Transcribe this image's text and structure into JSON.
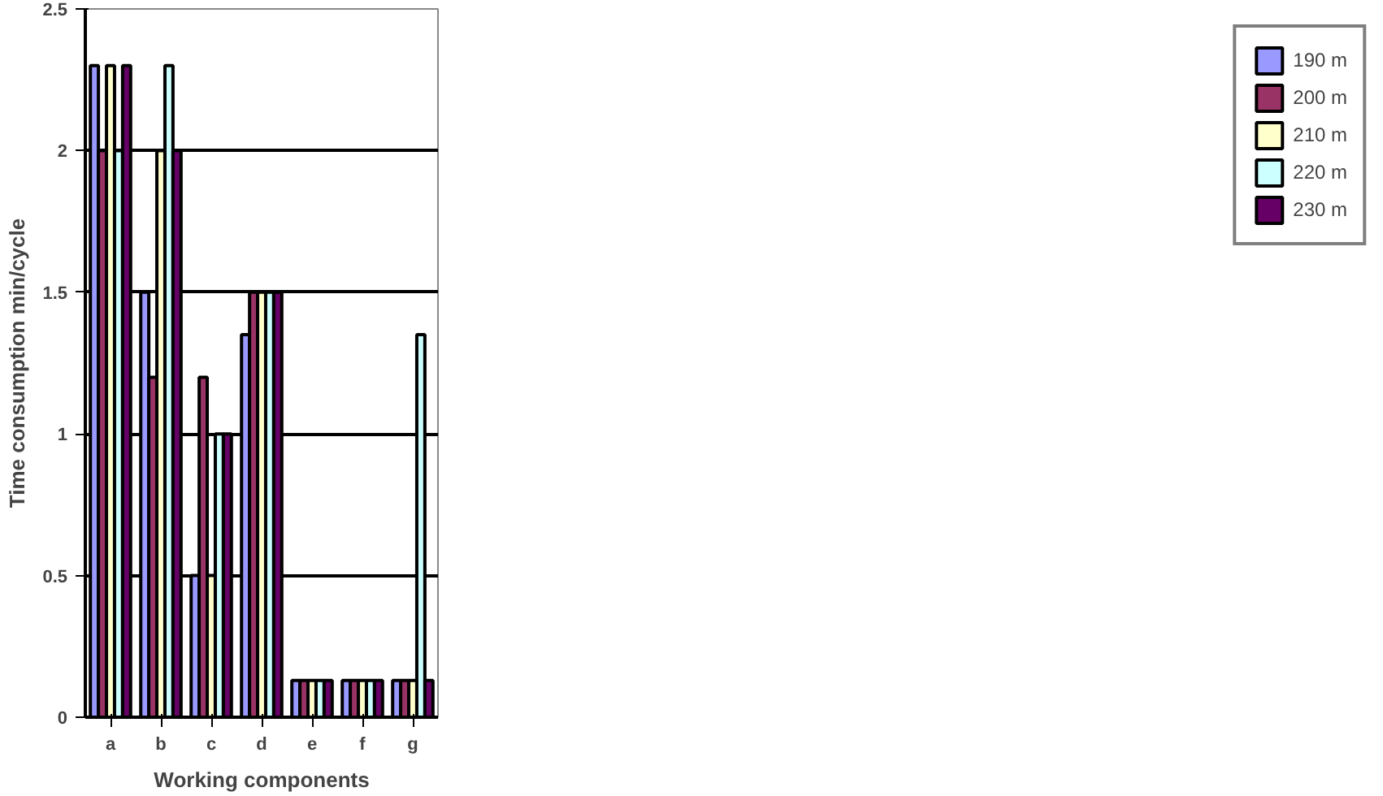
{
  "chart_data": {
    "type": "bar",
    "xlabel": "Working components",
    "ylabel": "Time consumption min/cycle",
    "categories": [
      "a",
      "b",
      "c",
      "d",
      "e",
      "f",
      "g"
    ],
    "series": [
      {
        "name": "190 m",
        "color": "#9999ff",
        "values": [
          2.3,
          1.5,
          0.5,
          1.35,
          0.13,
          0.13,
          0.13
        ]
      },
      {
        "name": "200 m",
        "color": "#993366",
        "values": [
          2.0,
          1.2,
          1.2,
          1.5,
          0.13,
          0.13,
          0.13
        ]
      },
      {
        "name": "210 m",
        "color": "#ffffcc",
        "values": [
          2.3,
          2.0,
          0.5,
          1.5,
          0.13,
          0.13,
          0.13
        ]
      },
      {
        "name": "220 m",
        "color": "#ccffff",
        "values": [
          2.0,
          2.3,
          1.0,
          1.5,
          0.13,
          0.13,
          1.35
        ]
      },
      {
        "name": "230 m",
        "color": "#660066",
        "values": [
          2.3,
          2.0,
          1.0,
          1.5,
          0.13,
          0.13,
          0.13
        ]
      }
    ],
    "ylim": [
      0,
      2.5
    ],
    "yticks": [
      0,
      0.5,
      1,
      1.5,
      2,
      2.5
    ],
    "grid": "y",
    "legend": "right"
  }
}
